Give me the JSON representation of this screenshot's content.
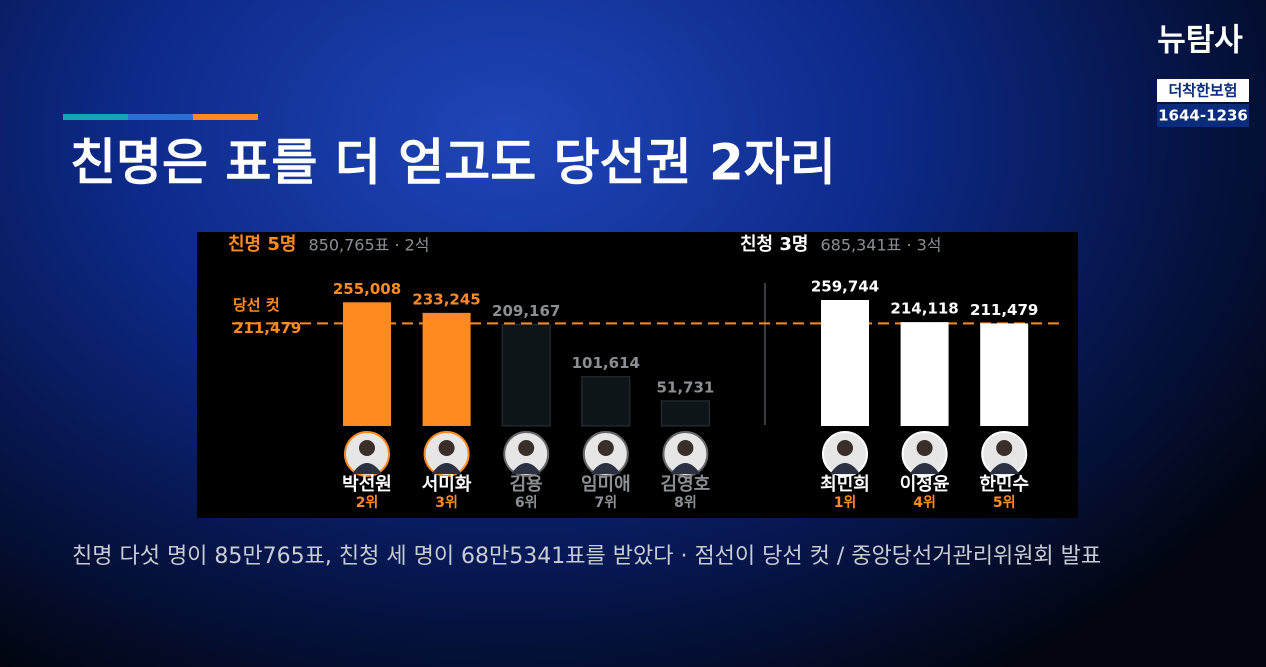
{
  "title": "친명은 표를 더 얻고도 당선권 2자리",
  "caption": "친명 다섯 명이 85만765표, 친청 세 명이 68만5341표를 받았다 · 점선이 당선 컷 / 중앙당선거관리위원회 발표",
  "logo": {
    "name": "뉴탐사",
    "sponsor": "더착한보험",
    "phone": "1644-1236"
  },
  "chart_data": [
    {
      "type": "bar",
      "title": "친명 5명",
      "subtitle": "850,765표 · 2석",
      "categories": [
        "박선원",
        "서미화",
        "김용",
        "임미애",
        "김영호"
      ],
      "values": [
        255008,
        233245,
        209167,
        101614,
        51731
      ],
      "value_labels": [
        "255,008",
        "233,245",
        "209,167",
        "101,614",
        "51,731"
      ],
      "ranks": [
        "2위",
        "3위",
        "6위",
        "7위",
        "8위"
      ],
      "colors": [
        "#ff8a1f",
        "#ff8a1f",
        "#0e1519",
        "#0e1519",
        "#0e1519"
      ],
      "threshold": {
        "label": "당선 컷",
        "value": 211479,
        "value_label": "211,479",
        "color": "#ff8a1f"
      }
    },
    {
      "type": "bar",
      "title": "친청 3명",
      "subtitle": "685,341표 · 3석",
      "categories": [
        "최민희",
        "이정윤",
        "한민수"
      ],
      "values": [
        259744,
        214118,
        211479
      ],
      "value_labels": [
        "259,744",
        "214,118",
        "211,479"
      ],
      "ranks": [
        "1위",
        "4위",
        "5위"
      ],
      "colors": [
        "#ffffff",
        "#ffffff",
        "#ffffff"
      ]
    }
  ]
}
